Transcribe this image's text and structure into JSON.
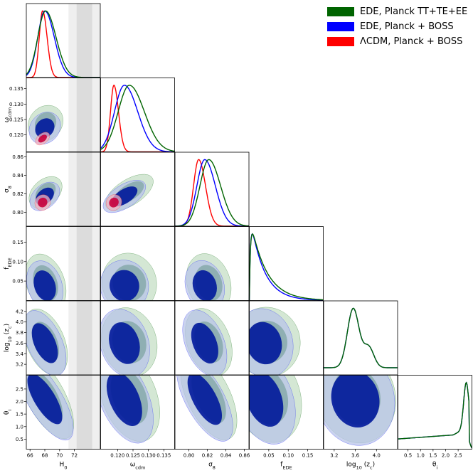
{
  "chart_data": {
    "type": "triangle",
    "parameters": [
      {
        "label": "H",
        "sub": "0",
        "range": [
          65.5,
          75.5
        ],
        "ticks": [
          66,
          68,
          70,
          72
        ]
      },
      {
        "label": "ω",
        "sub": "cdm",
        "range": [
          0.1145,
          0.1385
        ],
        "ticks": [
          0.12,
          0.125,
          0.13,
          0.135
        ],
        "tick_labels": [
          "0.120",
          "0.125",
          "0.130",
          "0.135"
        ]
      },
      {
        "label": "σ",
        "sub": "8",
        "range": [
          0.785,
          0.865
        ],
        "ticks": [
          0.8,
          0.82,
          0.84,
          0.86
        ],
        "tick_labels": [
          "0.80",
          "0.82",
          "0.84",
          "0.86"
        ]
      },
      {
        "label": "f",
        "sub": "EDE",
        "range": [
          0.0,
          0.19
        ],
        "ticks": [
          0.05,
          0.1,
          0.15
        ],
        "tick_labels": [
          "0.05",
          "0.10",
          "0.15"
        ]
      },
      {
        "label": "log",
        "sub": "10",
        "suffix": " (z",
        "suffix_sub": "c",
        "suffix_end": ")",
        "range": [
          3.0,
          4.4
        ],
        "ticks": [
          3.2,
          3.6,
          4.0
        ],
        "tick_labels": [
          "3.2",
          "3.6",
          "4.0"
        ],
        "ytick_labels": [
          "3.2",
          "3.4",
          "3.6",
          "3.8",
          "4.0",
          "4.2"
        ],
        "yticks": [
          3.2,
          3.4,
          3.6,
          3.8,
          4.0,
          4.2
        ]
      },
      {
        "label": "θ",
        "sub": "i",
        "range": [
          0.1,
          3.05
        ],
        "ticks": [
          0.5,
          1.0,
          1.5,
          2.0,
          2.5
        ],
        "tick_labels": [
          "0.5",
          "1.0",
          "1.5",
          "2.0",
          "2.5"
        ]
      }
    ],
    "series": [
      {
        "name": "EDE, Planck TT+TE+EE",
        "color": "#006400",
        "fill_inner": "#006400",
        "fill_outer": "#c5dfc5",
        "mean": [
          68.1,
          0.1238,
          0.8215,
          0.045,
          3.62,
          2.2
        ],
        "sd": [
          1.05,
          0.0036,
          0.0095,
          0.035,
          0.3,
          0.85
        ]
      },
      {
        "name": "EDE, Planck + BOSS",
        "color": "#0000ff",
        "fill_inner": "#00189b",
        "fill_outer": "#b8c4e8",
        "mean": [
          68.0,
          0.1222,
          0.8172,
          0.038,
          3.6,
          2.1
        ],
        "sd": [
          0.95,
          0.0032,
          0.0085,
          0.03,
          0.3,
          0.85
        ]
      },
      {
        "name": "ΛCDM, Planck + BOSS",
        "color": "#ff0000",
        "fill_inner": "#c8003c",
        "fill_outer": "#f0b4c0",
        "mean": [
          67.7,
          0.1188,
          0.8106,
          null,
          null,
          null
        ],
        "sd": [
          0.45,
          0.0011,
          0.0055,
          null,
          null,
          null
        ]
      }
    ],
    "sh0es_band": {
      "h0_1sigma": [
        72.3,
        74.4
      ],
      "h0_2sigma": [
        71.2,
        75.5
      ],
      "colors": [
        "#dcdcdc",
        "#efefef"
      ]
    }
  }
}
